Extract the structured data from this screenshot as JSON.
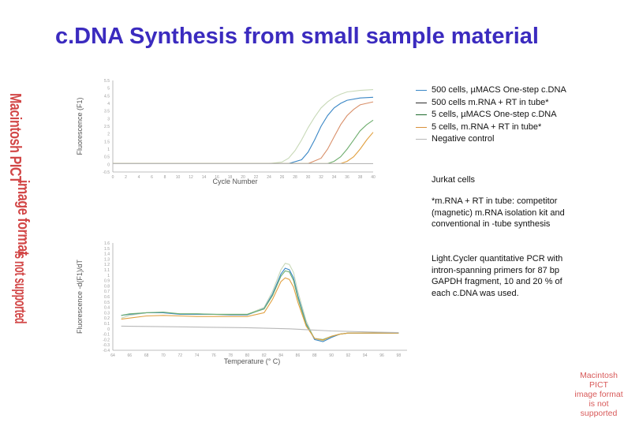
{
  "title": "c.DNA Synthesis from small sample material",
  "legend": [
    {
      "label": "500 cells, µMACS One-step c.DNA",
      "color": "#3a87c6"
    },
    {
      "label": "500 cells m.RNA + RT in tube*",
      "color": "#2c2c2c"
    },
    {
      "label": "5 cells, µMACS One-step c.DNA",
      "color": "#1e6b2e"
    },
    {
      "label": "5 cells, m.RNA + RT in tube*",
      "color": "#d9903a"
    },
    {
      "label": "Negative control",
      "color": "#b8b8b8"
    }
  ],
  "notes": {
    "cells": "Jurkat cells",
    "footnote": "*m.RNA + RT in tube: competitor (magnetic) m.RNA isolation kit and conventional in -tube synthesis",
    "method": "Light.Cycler quantitative PCR with intron-spanning primers for 87 bp GAPDH fragment, 10 and 20 % of each c.DNA was used."
  },
  "placeholders": {
    "pict_right": [
      "Macintosh PICT",
      "image format",
      "is not supported"
    ],
    "pict_left": [
      "Macintosh PICT",
      "image format",
      "is not supported"
    ]
  },
  "chart_data": [
    {
      "type": "line",
      "xlabel": "Cycle Number",
      "ylabel": "Fluorescence (F1)",
      "xlim": [
        0,
        40
      ],
      "ylim": [
        -0.5,
        5.5
      ],
      "xticks": [
        0,
        2,
        4,
        6,
        8,
        10,
        12,
        14,
        16,
        18,
        20,
        22,
        24,
        26,
        28,
        30,
        32,
        34,
        36,
        38,
        40
      ],
      "yticks": [
        -0.5,
        0,
        0.5,
        1,
        1.5,
        2,
        2.5,
        3,
        3.5,
        4,
        4.5,
        5,
        5.5
      ],
      "series": [
        {
          "color": "#c8d9b8",
          "x": [
            0,
            24,
            26,
            27,
            28,
            29,
            30,
            31,
            32,
            33,
            34,
            35,
            36,
            38,
            40
          ],
          "y": [
            0.05,
            0.05,
            0.15,
            0.4,
            0.9,
            1.6,
            2.4,
            3.1,
            3.7,
            4.1,
            4.4,
            4.6,
            4.75,
            4.85,
            4.9
          ]
        },
        {
          "color": "#3a87c6",
          "x": [
            0,
            27,
            29,
            30,
            31,
            32,
            33,
            34,
            35,
            36,
            38,
            40
          ],
          "y": [
            0.05,
            0.05,
            0.3,
            0.8,
            1.6,
            2.5,
            3.2,
            3.7,
            4.0,
            4.2,
            4.35,
            4.4
          ]
        },
        {
          "color": "#d9906a",
          "x": [
            0,
            30,
            32,
            33,
            34,
            35,
            36,
            37,
            38,
            40
          ],
          "y": [
            0.05,
            0.05,
            0.4,
            1.0,
            1.8,
            2.6,
            3.2,
            3.6,
            3.9,
            4.1
          ]
        },
        {
          "color": "#6fae6f",
          "x": [
            0,
            33,
            34,
            35,
            36,
            37,
            38,
            39,
            40
          ],
          "y": [
            0.05,
            0.05,
            0.2,
            0.5,
            1.0,
            1.6,
            2.2,
            2.6,
            2.9
          ]
        },
        {
          "color": "#e1a040",
          "x": [
            0,
            35,
            36,
            37,
            38,
            39,
            40
          ],
          "y": [
            0.05,
            0.05,
            0.2,
            0.5,
            1.0,
            1.6,
            2.1
          ]
        },
        {
          "color": "#b8b8b8",
          "x": [
            0,
            40
          ],
          "y": [
            0.05,
            0.05
          ]
        }
      ]
    },
    {
      "type": "line",
      "xlabel": "Temperature (° C)",
      "ylabel": "Fluorescence -d(F1)/dT",
      "xlim": [
        64,
        99
      ],
      "ylim": [
        -0.4,
        1.6
      ],
      "xticks": [
        64,
        66,
        68,
        70,
        72,
        74,
        76,
        78,
        80,
        82,
        84,
        86,
        88,
        90,
        92,
        94,
        96,
        98
      ],
      "yticks": [
        -0.4,
        -0.3,
        -0.2,
        -0.1,
        0,
        0.1,
        0.2,
        0.3,
        0.4,
        0.5,
        0.6,
        0.7,
        0.8,
        0.9,
        1.0,
        1.1,
        1.2,
        1.3,
        1.4,
        1.5,
        1.6
      ],
      "series": [
        {
          "color": "#c8d9b8",
          "x": [
            65,
            66,
            68,
            70,
            72,
            74,
            76,
            78,
            80,
            82,
            83,
            84,
            84.5,
            85,
            85.5,
            86,
            87,
            88,
            89,
            90,
            91,
            92,
            94,
            96,
            98
          ],
          "y": [
            0.2,
            0.25,
            0.3,
            0.3,
            0.28,
            0.28,
            0.27,
            0.27,
            0.27,
            0.4,
            0.7,
            1.1,
            1.22,
            1.2,
            1.05,
            0.7,
            0.15,
            -0.2,
            -0.22,
            -0.15,
            -0.1,
            -0.08,
            -0.08,
            -0.08,
            -0.08
          ]
        },
        {
          "color": "#3a87c6",
          "x": [
            65,
            66,
            68,
            70,
            72,
            74,
            76,
            78,
            80,
            82,
            83,
            84,
            84.5,
            85,
            85.5,
            86,
            87,
            88,
            89,
            90,
            91,
            92,
            94,
            96,
            98
          ],
          "y": [
            0.25,
            0.27,
            0.3,
            0.3,
            0.27,
            0.27,
            0.27,
            0.26,
            0.26,
            0.38,
            0.65,
            1.02,
            1.13,
            1.1,
            0.95,
            0.62,
            0.1,
            -0.2,
            -0.24,
            -0.16,
            -0.1,
            -0.08,
            -0.08,
            -0.08,
            -0.08
          ]
        },
        {
          "color": "#6fae6f",
          "x": [
            65,
            66,
            68,
            70,
            72,
            74,
            76,
            78,
            80,
            82,
            83,
            84,
            84.5,
            85,
            85.5,
            86,
            87,
            88,
            89,
            90,
            91,
            92,
            94,
            96,
            98
          ],
          "y": [
            0.25,
            0.28,
            0.3,
            0.31,
            0.28,
            0.28,
            0.27,
            0.27,
            0.27,
            0.37,
            0.62,
            0.98,
            1.08,
            1.06,
            0.9,
            0.58,
            0.08,
            -0.18,
            -0.2,
            -0.14,
            -0.1,
            -0.08,
            -0.08,
            -0.08,
            -0.08
          ]
        },
        {
          "color": "#e1a040",
          "x": [
            65,
            66,
            68,
            70,
            72,
            74,
            76,
            78,
            80,
            82,
            83,
            84,
            84.5,
            85,
            85.5,
            86,
            87,
            88,
            89,
            90,
            91,
            92,
            94,
            96,
            98
          ],
          "y": [
            0.18,
            0.2,
            0.24,
            0.25,
            0.24,
            0.23,
            0.23,
            0.23,
            0.23,
            0.3,
            0.55,
            0.88,
            0.95,
            0.92,
            0.78,
            0.5,
            0.05,
            -0.18,
            -0.21,
            -0.14,
            -0.1,
            -0.08,
            -0.08,
            -0.08,
            -0.08
          ]
        },
        {
          "color": "#b8b8b8",
          "x": [
            65,
            70,
            75,
            80,
            85,
            90,
            95,
            98
          ],
          "y": [
            0.05,
            0.04,
            0.03,
            0.02,
            0.0,
            -0.04,
            -0.06,
            -0.07
          ]
        }
      ]
    }
  ]
}
